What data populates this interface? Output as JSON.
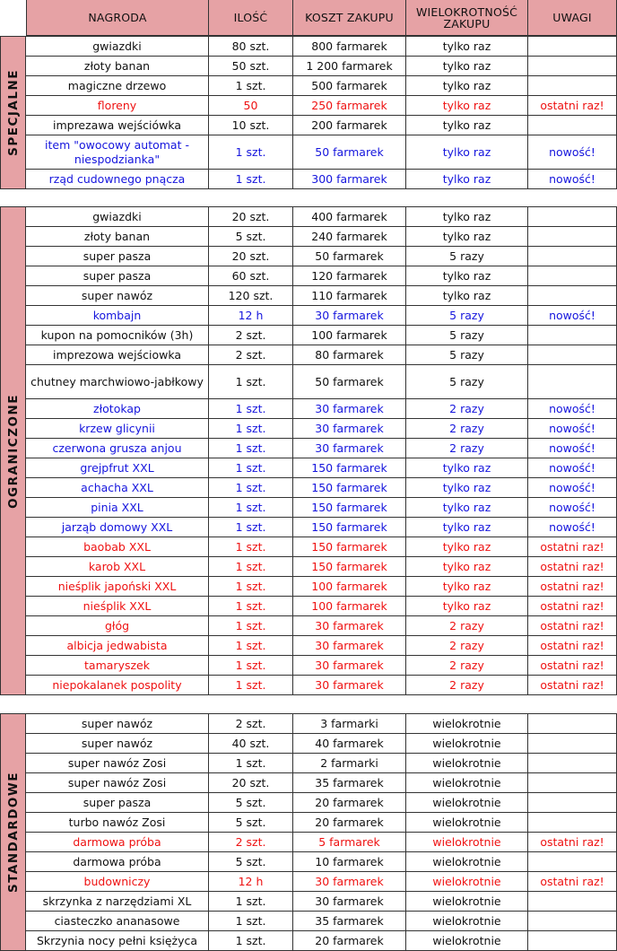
{
  "colors": {
    "header_bg": "#e6a2a5",
    "text_black": "#111111",
    "text_blue": "#1515dd",
    "text_red": "#ee1111",
    "grid": "#333333"
  },
  "header": {
    "nagroda": "NAGRODA",
    "ilosc": "ILOŚĆ",
    "koszt": "KOSZT ZAKUPU",
    "wielokrotnosc": "WIELOKROTNOŚĆ ZAKUPU",
    "uwagi": "UWAGI"
  },
  "sections": [
    {
      "label": "SPECJALNE",
      "rows": [
        {
          "nagroda": "gwiazdki",
          "ilosc": "80 szt.",
          "koszt": "800 farmarek",
          "wielokrotnosc": "tylko raz",
          "uwagi": "",
          "color": "black"
        },
        {
          "nagroda": "złoty banan",
          "ilosc": "50 szt.",
          "koszt": "1 200 farmarek",
          "wielokrotnosc": "tylko raz",
          "uwagi": "",
          "color": "black"
        },
        {
          "nagroda": "magiczne drzewo",
          "ilosc": "1 szt.",
          "koszt": "500 farmarek",
          "wielokrotnosc": "tylko raz",
          "uwagi": "",
          "color": "black"
        },
        {
          "nagroda": "floreny",
          "ilosc": "50",
          "koszt": "250 farmarek",
          "wielokrotnosc": "tylko raz",
          "uwagi": "ostatni raz!",
          "color": "red"
        },
        {
          "nagroda": "impreza­wa wejściówka",
          "ilosc": "10 szt.",
          "koszt": "200 farmarek",
          "wielokrotnosc": "tylko raz",
          "uwagi": "",
          "color": "black"
        },
        {
          "nagroda": "item \"owocowy automat - niespodzianka\"",
          "ilosc": "1 szt.",
          "koszt": "50 farmarek",
          "wielokrotnosc": "tylko raz",
          "uwagi": "nowość!",
          "color": "blue",
          "tall": true
        },
        {
          "nagroda": "rząd cudownego pnącza",
          "ilosc": "1 szt.",
          "koszt": "300 farmarek",
          "wielokrotnosc": "tylko raz",
          "uwagi": "nowość!",
          "color": "blue"
        }
      ]
    },
    {
      "label": "OGRANICZONE",
      "rows": [
        {
          "nagroda": "gwiazdki",
          "ilosc": "20 szt.",
          "koszt": "400 farmarek",
          "wielokrotnosc": "tylko raz",
          "uwagi": "",
          "color": "black"
        },
        {
          "nagroda": "złoty banan",
          "ilosc": "5 szt.",
          "koszt": "240 farmarek",
          "wielokrotnosc": "tylko raz",
          "uwagi": "",
          "color": "black"
        },
        {
          "nagroda": "super pasza",
          "ilosc": "20 szt.",
          "koszt": "50 farmarek",
          "wielokrotnosc": "5 razy",
          "uwagi": "",
          "color": "black"
        },
        {
          "nagroda": "super pasza",
          "ilosc": "60 szt.",
          "koszt": "120 farmarek",
          "wielokrotnosc": "tylko raz",
          "uwagi": "",
          "color": "black"
        },
        {
          "nagroda": "super nawóz",
          "ilosc": "120 szt.",
          "koszt": "110 farmarek",
          "wielokrotnosc": "tylko raz",
          "uwagi": "",
          "color": "black"
        },
        {
          "nagroda": "kombajn",
          "ilosc": "12 h",
          "koszt": "30 farmarek",
          "wielokrotnosc": "5 razy",
          "uwagi": "nowość!",
          "color": "blue"
        },
        {
          "nagroda": "kupon na pomocników (3h)",
          "ilosc": "2 szt.",
          "koszt": "100 farmarek",
          "wielokrotnosc": "5 razy",
          "uwagi": "",
          "color": "black"
        },
        {
          "nagroda": "imprezowa wejściowka",
          "ilosc": "2 szt.",
          "koszt": "80 farmarek",
          "wielokrotnosc": "5 razy",
          "uwagi": "",
          "color": "black"
        },
        {
          "nagroda": "chutney marchwiowo-jabłkowy",
          "ilosc": "1 szt.",
          "koszt": "50 farmarek",
          "wielokrotnosc": "5 razy",
          "uwagi": "",
          "color": "black",
          "tall": true
        },
        {
          "nagroda": "złotokap",
          "ilosc": "1 szt.",
          "koszt": "30 farmarek",
          "wielokrotnosc": "2 razy",
          "uwagi": "nowość!",
          "color": "blue"
        },
        {
          "nagroda": "krzew glicynii",
          "ilosc": "1 szt.",
          "koszt": "30 farmarek",
          "wielokrotnosc": "2 razy",
          "uwagi": "nowość!",
          "color": "blue"
        },
        {
          "nagroda": "czerwona grusza anjou",
          "ilosc": "1 szt.",
          "koszt": "30 farmarek",
          "wielokrotnosc": "2 razy",
          "uwagi": "nowość!",
          "color": "blue"
        },
        {
          "nagroda": "grejpfrut XXL",
          "ilosc": "1 szt.",
          "koszt": "150 farmarek",
          "wielokrotnosc": "tylko raz",
          "uwagi": "nowość!",
          "color": "blue"
        },
        {
          "nagroda": "achacha XXL",
          "ilosc": "1 szt.",
          "koszt": "150 farmarek",
          "wielokrotnosc": "tylko raz",
          "uwagi": "nowość!",
          "color": "blue"
        },
        {
          "nagroda": "pinia XXL",
          "ilosc": "1 szt.",
          "koszt": "150 farmarek",
          "wielokrotnosc": "tylko raz",
          "uwagi": "nowość!",
          "color": "blue"
        },
        {
          "nagroda": "jarząb domowy XXL",
          "ilosc": "1 szt.",
          "koszt": "150 farmarek",
          "wielokrotnosc": "tylko raz",
          "uwagi": "nowość!",
          "color": "blue"
        },
        {
          "nagroda": "baobab XXL",
          "ilosc": "1 szt.",
          "koszt": "150 farmarek",
          "wielokrotnosc": "tylko raz",
          "uwagi": "ostatni raz!",
          "color": "red"
        },
        {
          "nagroda": "karob XXL",
          "ilosc": "1 szt.",
          "koszt": "150 farmarek",
          "wielokrotnosc": "tylko raz",
          "uwagi": "ostatni raz!",
          "color": "red"
        },
        {
          "nagroda": "nieśplik japoński XXL",
          "ilosc": "1 szt.",
          "koszt": "100 farmarek",
          "wielokrotnosc": "tylko raz",
          "uwagi": "ostatni raz!",
          "color": "red"
        },
        {
          "nagroda": "nieśplik XXL",
          "ilosc": "1 szt.",
          "koszt": "100 farmarek",
          "wielokrotnosc": "tylko raz",
          "uwagi": "ostatni raz!",
          "color": "red"
        },
        {
          "nagroda": "głóg",
          "ilosc": "1 szt.",
          "koszt": "30 farmarek",
          "wielokrotnosc": "2 razy",
          "uwagi": "ostatni raz!",
          "color": "red"
        },
        {
          "nagroda": "albicja jedwabista",
          "ilosc": "1 szt.",
          "koszt": "30 farmarek",
          "wielokrotnosc": "2 razy",
          "uwagi": "ostatni raz!",
          "color": "red"
        },
        {
          "nagroda": "tamaryszek",
          "ilosc": "1 szt.",
          "koszt": "30 farmarek",
          "wielokrotnosc": "2 razy",
          "uwagi": "ostatni raz!",
          "color": "red"
        },
        {
          "nagroda": "niepokalanek pospolity",
          "ilosc": "1 szt.",
          "koszt": "30 farmarek",
          "wielokrotnosc": "2 razy",
          "uwagi": "ostatni raz!",
          "color": "red"
        }
      ]
    },
    {
      "label": "STANDARDOWE",
      "rows": [
        {
          "nagroda": "super nawóz",
          "ilosc": "2 szt.",
          "koszt": "3 farmarki",
          "wielokrotnosc": "wielokrotnie",
          "uwagi": "",
          "color": "black"
        },
        {
          "nagroda": "super nawóz",
          "ilosc": "40 szt.",
          "koszt": "40 farmarek",
          "wielokrotnosc": "wielokrotnie",
          "uwagi": "",
          "color": "black"
        },
        {
          "nagroda": "super nawóz Zosi",
          "ilosc": "1 szt.",
          "koszt": "2 farmarki",
          "wielokrotnosc": "wielokrotnie",
          "uwagi": "",
          "color": "black"
        },
        {
          "nagroda": "super nawóz Zosi",
          "ilosc": "20 szt.",
          "koszt": "35 farmarek",
          "wielokrotnosc": "wielokrotnie",
          "uwagi": "",
          "color": "black"
        },
        {
          "nagroda": "super pasza",
          "ilosc": "5 szt.",
          "koszt": "20 farmarek",
          "wielokrotnosc": "wielokrotnie",
          "uwagi": "",
          "color": "black"
        },
        {
          "nagroda": "turbo nawóz Zosi",
          "ilosc": "5 szt.",
          "koszt": "20 farmarek",
          "wielokrotnosc": "wielokrotnie",
          "uwagi": "",
          "color": "black"
        },
        {
          "nagroda": "darmowa próba",
          "ilosc": "2 szt.",
          "koszt": "5 farmarek",
          "wielokrotnosc": "wielokrotnie",
          "uwagi": "ostatni raz!",
          "color": "red"
        },
        {
          "nagroda": "darmowa próba",
          "ilosc": "5 szt.",
          "koszt": "10 farmarek",
          "wielokrotnosc": "wielokrotnie",
          "uwagi": "",
          "color": "black"
        },
        {
          "nagroda": "budowniczy",
          "ilosc": "12 h",
          "koszt": "30 farmarek",
          "wielokrotnosc": "wielokrotnie",
          "uwagi": "ostatni raz!",
          "color": "red"
        },
        {
          "nagroda": "skrzynka z narzędziami XL",
          "ilosc": "1 szt.",
          "koszt": "30 farmarek",
          "wielokrotnosc": "wielokrotnie",
          "uwagi": "",
          "color": "black"
        },
        {
          "nagroda": "ciasteczko ananasowe",
          "ilosc": "1 szt.",
          "koszt": "35 farmarek",
          "wielokrotnosc": "wielokrotnie",
          "uwagi": "",
          "color": "black"
        },
        {
          "nagroda": "Skrzynia nocy pełni księżyca",
          "ilosc": "1 szt.",
          "koszt": "20 farmarek",
          "wielokrotnosc": "wielokrotnie",
          "uwagi": "",
          "color": "black"
        }
      ]
    }
  ]
}
